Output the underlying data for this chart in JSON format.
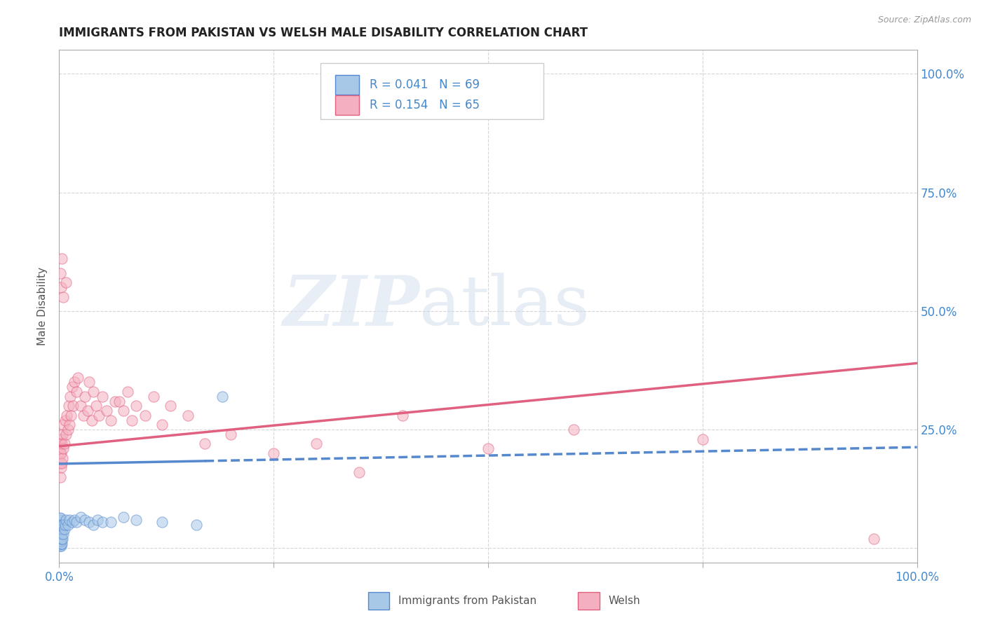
{
  "title": "IMMIGRANTS FROM PAKISTAN VS WELSH MALE DISABILITY CORRELATION CHART",
  "source": "Source: ZipAtlas.com",
  "ylabel": "Male Disability",
  "xlim": [
    0,
    1.0
  ],
  "ylim": [
    -0.03,
    1.05
  ],
  "x_ticks": [
    0.0,
    0.25,
    0.5,
    0.75,
    1.0
  ],
  "x_tick_labels": [
    "0.0%",
    "",
    "",
    "",
    "100.0%"
  ],
  "y_ticks": [
    0.0,
    0.25,
    0.5,
    0.75,
    1.0
  ],
  "y_tick_labels_right": [
    "",
    "25.0%",
    "50.0%",
    "75.0%",
    "100.0%"
  ],
  "blue_color": "#a8c8e8",
  "blue_edge_color": "#5588cc",
  "pink_color": "#f4b0c0",
  "pink_edge_color": "#e06080",
  "blue_trend_color": "#5588cc",
  "pink_trend_color": "#e06080",
  "watermark_zip": "ZIP",
  "watermark_atlas": "atlas",
  "legend_R_blue": "R = 0.041",
  "legend_N_blue": "N = 69",
  "legend_R_pink": "R = 0.154",
  "legend_N_pink": "N = 65",
  "blue_scatter_x": [
    0.001,
    0.001,
    0.001,
    0.001,
    0.001,
    0.001,
    0.001,
    0.001,
    0.001,
    0.001,
    0.001,
    0.001,
    0.001,
    0.001,
    0.001,
    0.001,
    0.001,
    0.001,
    0.001,
    0.001,
    0.001,
    0.001,
    0.001,
    0.001,
    0.001,
    0.001,
    0.001,
    0.001,
    0.001,
    0.001,
    0.002,
    0.002,
    0.002,
    0.002,
    0.002,
    0.002,
    0.002,
    0.002,
    0.002,
    0.002,
    0.003,
    0.003,
    0.003,
    0.003,
    0.003,
    0.004,
    0.004,
    0.005,
    0.005,
    0.006,
    0.007,
    0.008,
    0.01,
    0.012,
    0.015,
    0.018,
    0.02,
    0.025,
    0.03,
    0.035,
    0.04,
    0.045,
    0.05,
    0.06,
    0.075,
    0.09,
    0.12,
    0.16,
    0.19
  ],
  "blue_scatter_y": [
    0.005,
    0.008,
    0.01,
    0.012,
    0.014,
    0.016,
    0.018,
    0.02,
    0.022,
    0.024,
    0.026,
    0.028,
    0.03,
    0.032,
    0.034,
    0.036,
    0.038,
    0.04,
    0.042,
    0.044,
    0.046,
    0.048,
    0.05,
    0.052,
    0.054,
    0.056,
    0.058,
    0.06,
    0.062,
    0.064,
    0.005,
    0.01,
    0.015,
    0.02,
    0.025,
    0.03,
    0.035,
    0.04,
    0.045,
    0.05,
    0.01,
    0.02,
    0.03,
    0.04,
    0.05,
    0.02,
    0.04,
    0.03,
    0.05,
    0.04,
    0.05,
    0.06,
    0.05,
    0.06,
    0.055,
    0.06,
    0.055,
    0.065,
    0.06,
    0.055,
    0.05,
    0.06,
    0.055,
    0.055,
    0.065,
    0.06,
    0.055,
    0.05,
    0.32
  ],
  "pink_scatter_x": [
    0.001,
    0.001,
    0.001,
    0.001,
    0.002,
    0.002,
    0.002,
    0.003,
    0.003,
    0.004,
    0.004,
    0.005,
    0.005,
    0.006,
    0.007,
    0.008,
    0.009,
    0.01,
    0.011,
    0.012,
    0.013,
    0.014,
    0.015,
    0.016,
    0.018,
    0.02,
    0.022,
    0.025,
    0.028,
    0.03,
    0.033,
    0.035,
    0.038,
    0.04,
    0.043,
    0.046,
    0.05,
    0.055,
    0.06,
    0.065,
    0.07,
    0.075,
    0.08,
    0.085,
    0.09,
    0.1,
    0.11,
    0.12,
    0.13,
    0.15,
    0.17,
    0.2,
    0.25,
    0.3,
    0.35,
    0.4,
    0.5,
    0.6,
    0.75,
    0.95,
    0.001,
    0.002,
    0.003,
    0.005,
    0.008
  ],
  "pink_scatter_y": [
    0.18,
    0.2,
    0.22,
    0.15,
    0.17,
    0.2,
    0.23,
    0.18,
    0.22,
    0.19,
    0.24,
    0.21,
    0.26,
    0.22,
    0.27,
    0.24,
    0.28,
    0.25,
    0.3,
    0.26,
    0.32,
    0.28,
    0.34,
    0.3,
    0.35,
    0.33,
    0.36,
    0.3,
    0.28,
    0.32,
    0.29,
    0.35,
    0.27,
    0.33,
    0.3,
    0.28,
    0.32,
    0.29,
    0.27,
    0.31,
    0.31,
    0.29,
    0.33,
    0.27,
    0.3,
    0.28,
    0.32,
    0.26,
    0.3,
    0.28,
    0.22,
    0.24,
    0.2,
    0.22,
    0.16,
    0.28,
    0.21,
    0.25,
    0.23,
    0.02,
    0.58,
    0.55,
    0.61,
    0.53,
    0.56
  ],
  "blue_trend_solid_end": 0.17,
  "blue_trend_y_intercept": 0.178,
  "blue_trend_slope": 0.035,
  "pink_trend_y_intercept": 0.215,
  "pink_trend_slope": 0.175,
  "background_color": "#ffffff",
  "grid_color": "#cccccc",
  "tick_label_color": "#4488cc",
  "title_color": "#222222",
  "marker_size": 120,
  "marker_alpha": 0.55
}
